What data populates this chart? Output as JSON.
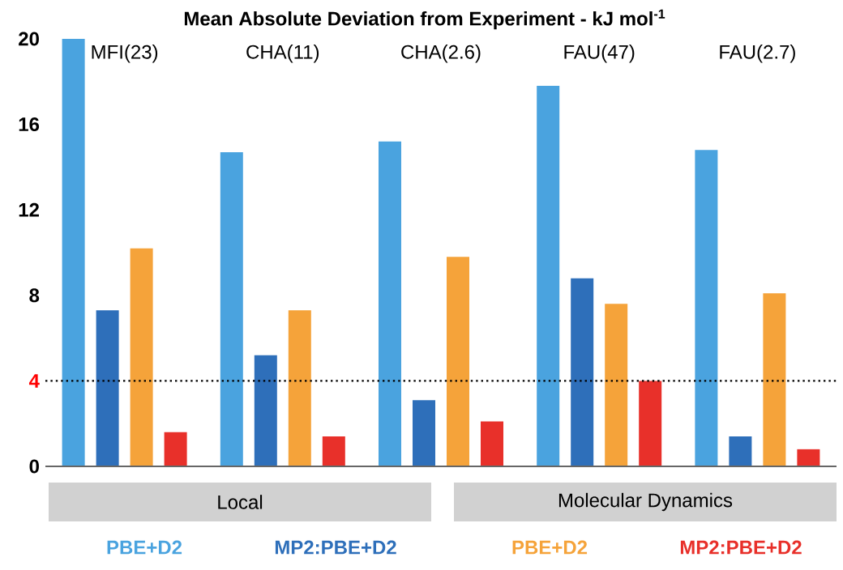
{
  "chart_data": {
    "type": "bar",
    "title": "Mean Absolute Deviation from Experiment - kJ mol$^{-1}$",
    "categories": [
      "MFI(23)",
      "CHA(11)",
      "CHA(2.6)",
      "FAU(47)",
      "FAU(2.7)"
    ],
    "series": [
      {
        "name": "PBE+D2",
        "color": "#4aa3df",
        "values": [
          20.0,
          14.7,
          15.2,
          17.8,
          14.8
        ]
      },
      {
        "name": "MP2:PBE+D2",
        "color": "#2e6fba",
        "values": [
          7.3,
          5.2,
          3.1,
          8.8,
          1.4
        ]
      },
      {
        "name": "PBE+D2",
        "color": "#f5a33a",
        "values": [
          10.2,
          7.3,
          9.8,
          7.6,
          8.1
        ]
      },
      {
        "name": "MP2:PBE+D2",
        "color": "#e8302a",
        "values": [
          1.6,
          1.4,
          2.1,
          4.0,
          0.8
        ]
      }
    ],
    "ylim": [
      0,
      20
    ],
    "yticks": [
      0,
      8,
      12,
      16,
      20
    ],
    "ref_lines": [
      {
        "axis": "y",
        "value": 4,
        "label": "4",
        "color": "#000000",
        "line_style": "dotted"
      }
    ],
    "annotations": [
      "Local",
      "Molecular Dynamics"
    ],
    "legend": "bottom",
    "grid": false
  }
}
